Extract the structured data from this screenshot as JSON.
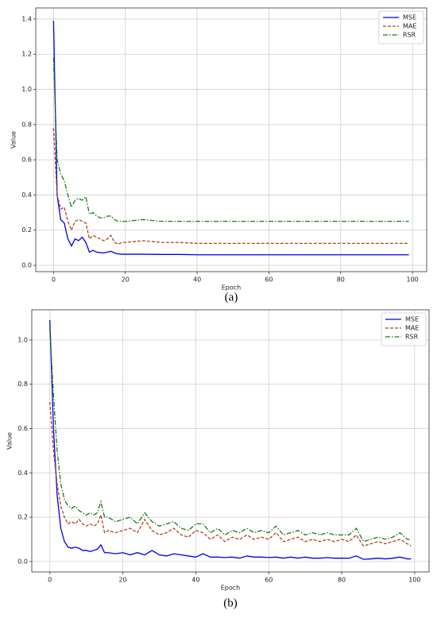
{
  "chart_data": [
    {
      "type": "line",
      "caption": "(a)",
      "xlabel": "Epoch",
      "ylabel": "Value",
      "x": [
        0,
        1,
        2,
        3,
        4,
        5,
        6,
        7,
        8,
        9,
        10,
        11,
        12,
        13,
        14,
        15,
        16,
        17,
        18,
        19,
        20,
        25,
        30,
        35,
        40,
        50,
        60,
        70,
        80,
        90,
        99
      ],
      "series": [
        {
          "name": "MSE",
          "color": "#0000ee",
          "linestyle": "solid",
          "values": [
            1.39,
            0.4,
            0.26,
            0.24,
            0.15,
            0.11,
            0.15,
            0.14,
            0.16,
            0.13,
            0.075,
            0.085,
            0.075,
            0.072,
            0.07,
            0.075,
            0.08,
            0.07,
            0.065,
            0.063,
            0.063,
            0.063,
            0.062,
            0.062,
            0.06,
            0.06,
            0.06,
            0.06,
            0.06,
            0.06,
            0.06
          ]
        },
        {
          "name": "MAE",
          "color": "#b5441a",
          "linestyle": "dashed",
          "values": [
            0.78,
            0.4,
            0.32,
            0.33,
            0.25,
            0.2,
            0.25,
            0.26,
            0.25,
            0.24,
            0.15,
            0.17,
            0.16,
            0.15,
            0.14,
            0.15,
            0.17,
            0.13,
            0.12,
            0.13,
            0.13,
            0.14,
            0.13,
            0.13,
            0.125,
            0.125,
            0.125,
            0.125,
            0.125,
            0.125,
            0.125
          ]
        },
        {
          "name": "RSR",
          "color": "#1a7a1a",
          "linestyle": "dashdot",
          "values": [
            1.18,
            0.6,
            0.52,
            0.48,
            0.4,
            0.33,
            0.37,
            0.38,
            0.37,
            0.39,
            0.29,
            0.3,
            0.28,
            0.27,
            0.27,
            0.28,
            0.28,
            0.26,
            0.25,
            0.25,
            0.25,
            0.26,
            0.25,
            0.25,
            0.25,
            0.25,
            0.25,
            0.25,
            0.25,
            0.25,
            0.25
          ]
        }
      ],
      "xlim": [
        -4.95,
        103.95
      ],
      "xticks": [
        0,
        20,
        40,
        60,
        80,
        100
      ],
      "ylim": [
        -0.036,
        1.463
      ],
      "yticks": [
        {
          "value": 0,
          "label": "0.0"
        },
        0.2,
        0.4,
        0.6,
        0.8,
        {
          "value": 1,
          "label": "1.0"
        },
        1.2,
        1.4
      ],
      "grid": true,
      "legend": "upper right"
    },
    {
      "type": "line",
      "caption": "(b)",
      "xlabel": "Epoch",
      "ylabel": "Value",
      "x": [
        0,
        1,
        2,
        3,
        4,
        5,
        6,
        7,
        8,
        9,
        10,
        11,
        12,
        13,
        14,
        15,
        16,
        18,
        20,
        22,
        24,
        26,
        28,
        30,
        32,
        34,
        36,
        38,
        40,
        42,
        44,
        46,
        48,
        50,
        52,
        54,
        56,
        58,
        60,
        62,
        64,
        66,
        68,
        70,
        72,
        74,
        76,
        78,
        80,
        82,
        84,
        86,
        88,
        90,
        92,
        94,
        96,
        98,
        99
      ],
      "series": [
        {
          "name": "MSE",
          "color": "#0000ee",
          "linestyle": "solid",
          "values": [
            1.09,
            0.6,
            0.3,
            0.15,
            0.09,
            0.065,
            0.06,
            0.065,
            0.06,
            0.05,
            0.05,
            0.045,
            0.05,
            0.055,
            0.075,
            0.04,
            0.04,
            0.035,
            0.04,
            0.03,
            0.04,
            0.03,
            0.05,
            0.03,
            0.025,
            0.035,
            0.03,
            0.025,
            0.02,
            0.035,
            0.02,
            0.02,
            0.018,
            0.02,
            0.015,
            0.025,
            0.02,
            0.02,
            0.018,
            0.02,
            0.015,
            0.02,
            0.015,
            0.02,
            0.015,
            0.015,
            0.018,
            0.015,
            0.015,
            0.015,
            0.025,
            0.01,
            0.012,
            0.015,
            0.012,
            0.015,
            0.02,
            0.012,
            0.012
          ]
        },
        {
          "name": "MAE",
          "color": "#b5441a",
          "linestyle": "dashed",
          "values": [
            0.72,
            0.5,
            0.35,
            0.25,
            0.2,
            0.17,
            0.18,
            0.17,
            0.19,
            0.17,
            0.16,
            0.17,
            0.16,
            0.17,
            0.21,
            0.13,
            0.14,
            0.13,
            0.14,
            0.15,
            0.13,
            0.19,
            0.14,
            0.12,
            0.13,
            0.15,
            0.12,
            0.11,
            0.14,
            0.13,
            0.1,
            0.12,
            0.09,
            0.11,
            0.1,
            0.12,
            0.1,
            0.11,
            0.1,
            0.13,
            0.09,
            0.1,
            0.11,
            0.09,
            0.1,
            0.09,
            0.1,
            0.09,
            0.1,
            0.09,
            0.12,
            0.07,
            0.08,
            0.09,
            0.08,
            0.09,
            0.1,
            0.08,
            0.07
          ]
        },
        {
          "name": "RSR",
          "color": "#1a7a1a",
          "linestyle": "dashdot",
          "values": [
            1.05,
            0.75,
            0.5,
            0.35,
            0.28,
            0.25,
            0.24,
            0.25,
            0.23,
            0.22,
            0.21,
            0.22,
            0.21,
            0.22,
            0.27,
            0.2,
            0.2,
            0.18,
            0.19,
            0.2,
            0.17,
            0.22,
            0.18,
            0.16,
            0.17,
            0.18,
            0.15,
            0.14,
            0.17,
            0.17,
            0.13,
            0.15,
            0.12,
            0.14,
            0.13,
            0.15,
            0.13,
            0.14,
            0.13,
            0.16,
            0.12,
            0.13,
            0.14,
            0.12,
            0.13,
            0.12,
            0.13,
            0.12,
            0.12,
            0.12,
            0.15,
            0.09,
            0.1,
            0.11,
            0.1,
            0.11,
            0.13,
            0.1,
            0.1
          ]
        }
      ],
      "xlim": [
        -4.95,
        103.95
      ],
      "xticks": [
        0,
        20,
        40,
        60,
        80,
        100
      ],
      "ylim": [
        -0.047,
        1.136
      ],
      "yticks": [
        {
          "value": 0,
          "label": "0.0"
        },
        0.2,
        0.4,
        0.6,
        0.8,
        {
          "value": 1,
          "label": "1.0"
        }
      ],
      "grid": true,
      "legend": "upper right"
    }
  ]
}
